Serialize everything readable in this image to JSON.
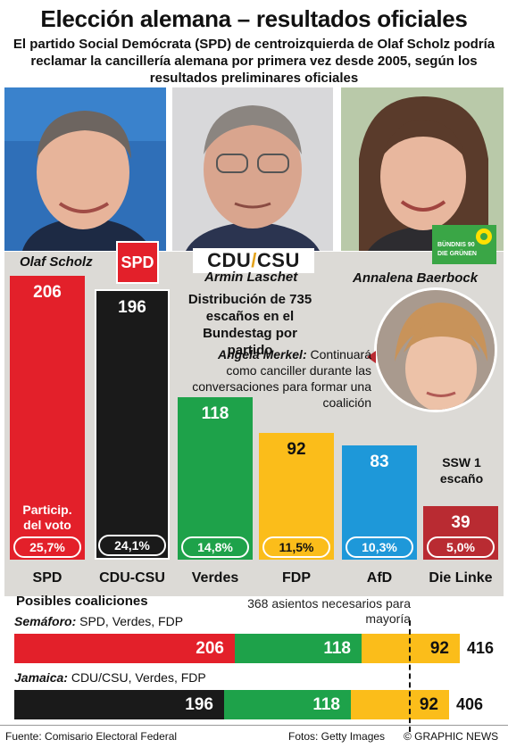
{
  "header": {
    "title": "Elección alemana – resultados oficiales",
    "subtitle": "El partido Social Demócrata (SPD) de centroizquierda de Olaf Scholz podría reclamar la cancillería alemana por primera vez desde 2005, según los resultados preliminares oficiales"
  },
  "people": {
    "scholz": "Olaf Scholz",
    "laschet": "Armin Laschet",
    "baerbock": "Annalena Baerbock",
    "merkel": "Angela Merkel:",
    "merkel_note": "Continuará como canciller durante las conversaciones para formar una coalición"
  },
  "logos": {
    "spd": "SPD",
    "cdu": "CDU",
    "csu": "CSU",
    "greens_line1": "BÜNDNIS 90",
    "greens_line2": "DIE GRÜNEN"
  },
  "colors": {
    "spd": "#e3202a",
    "cdu": "#1a1a1a",
    "verdes": "#1ea24a",
    "fdp": "#fbbd1a",
    "afd": "#1e98d9",
    "linke": "#b92b32"
  },
  "chart_data": {
    "type": "bar",
    "title": "Distribución de 735 escaños en el Bundestag por partido",
    "categories": [
      "SPD",
      "CDU-CSU",
      "Verdes",
      "FDP",
      "AfD",
      "Die Linke"
    ],
    "series": [
      {
        "name": "Escaños",
        "values": [
          206,
          196,
          118,
          92,
          83,
          39
        ]
      },
      {
        "name": "Particip. del voto",
        "values": [
          "25,7%",
          "24,1%",
          "14,8%",
          "11,5%",
          "10,3%",
          "5,0%"
        ]
      }
    ],
    "vote_share_label": "Particip. del voto",
    "extra_note": "SSW 1 escaño",
    "coalitions": {
      "title": "Posibles coaliciones",
      "majority_note": "368 asientos necesarios para mayoría",
      "majority": 368,
      "items": [
        {
          "name": "Semáforo:",
          "parties": "SPD, Verdes, FDP",
          "values": [
            206,
            118,
            92
          ],
          "total": 416
        },
        {
          "name": "Jamaica:",
          "parties": "CDU/CSU, Verdes, FDP",
          "values": [
            196,
            118,
            92
          ],
          "total": 406
        }
      ]
    }
  },
  "footer": {
    "source": "Fuente: Comisario Electoral Federal",
    "photos": "Fotos: Getty Images",
    "credit": "© GRAPHIC NEWS"
  }
}
